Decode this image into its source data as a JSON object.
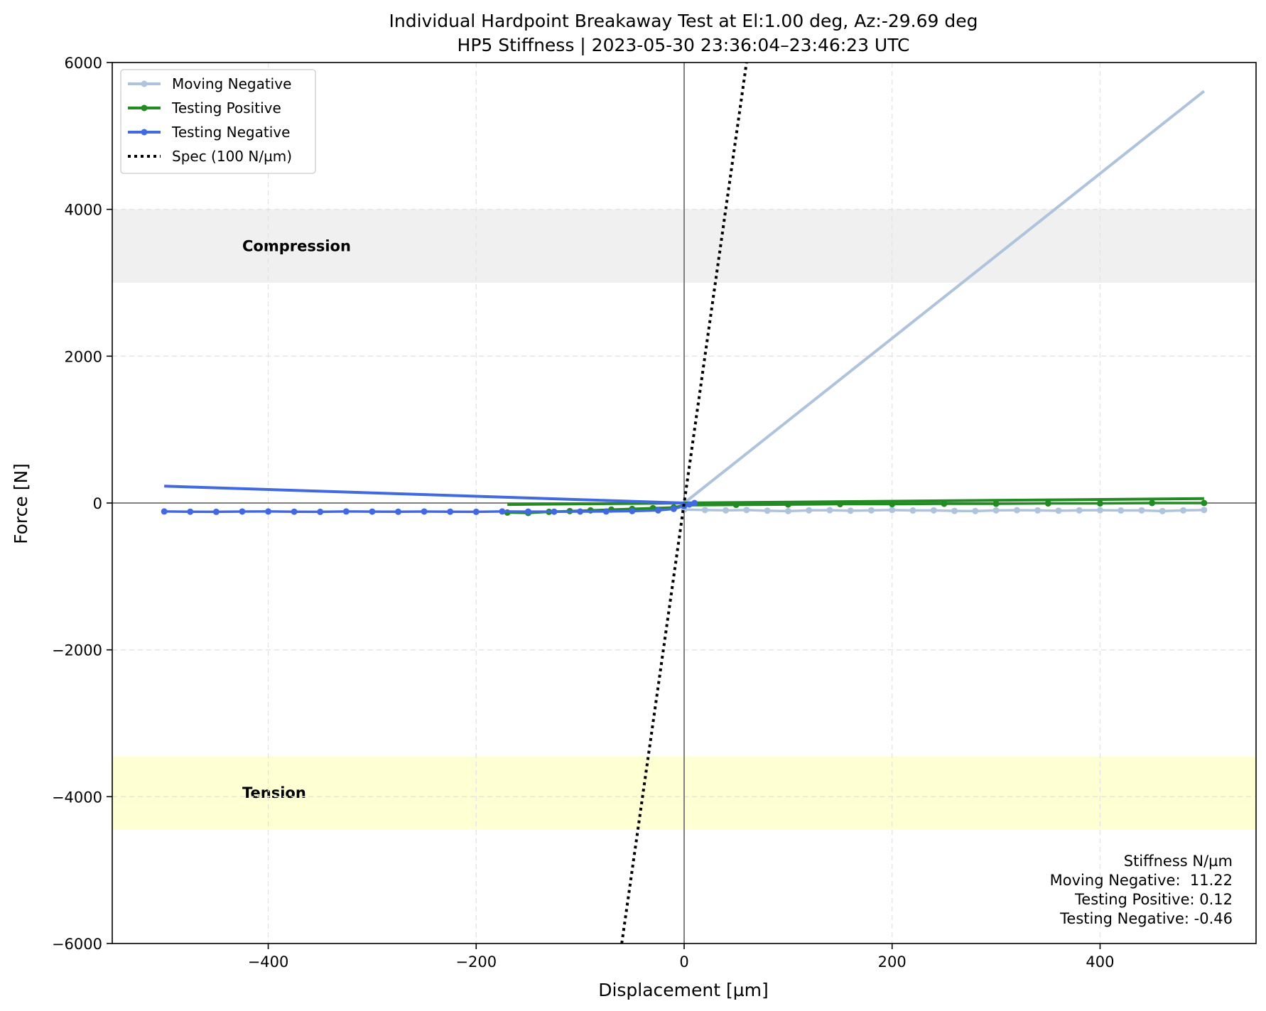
{
  "chart_data": {
    "type": "line",
    "title": "Individual Hardpoint Breakaway Test at El:1.00 deg, Az:-29.69 deg",
    "subtitle": "HP5 Stiffness | 2023-05-30 23:36:04–23:46:23 UTC",
    "xlabel": "Displacement [µm]",
    "ylabel": "Force [N]",
    "xlim": [
      -550,
      550
    ],
    "ylim": [
      -6000,
      6000
    ],
    "xticks": [
      -400,
      -200,
      0,
      200,
      400
    ],
    "yticks": [
      -6000,
      -4000,
      -2000,
      0,
      2000,
      4000,
      6000
    ],
    "xtick_labels": [
      "−400",
      "−200",
      "0",
      "200",
      "400"
    ],
    "ytick_labels": [
      "−6000",
      "−4000",
      "−2000",
      "0",
      "2000",
      "4000",
      "6000"
    ],
    "grid": true,
    "legend_position": "top-left",
    "bands": [
      {
        "label": "Compression",
        "y_from": 3000,
        "y_to": 4000,
        "color": "#f0f0f0"
      },
      {
        "label": "Tension",
        "y_from": -4450,
        "y_to": -3450,
        "color": "#ffffd4"
      }
    ],
    "series": [
      {
        "name": "Moving Negative",
        "color": "#aec3dc",
        "data_x": [
          0,
          20,
          40,
          60,
          80,
          100,
          120,
          140,
          160,
          180,
          200,
          220,
          240,
          260,
          280,
          300,
          320,
          340,
          360,
          380,
          400,
          420,
          440,
          460,
          480,
          500
        ],
        "data_y": [
          -90,
          -95,
          -100,
          -95,
          -105,
          -110,
          -100,
          -98,
          -105,
          -100,
          -95,
          -102,
          -100,
          -108,
          -110,
          -100,
          -98,
          -100,
          -105,
          -100,
          -98,
          -102,
          -100,
          -110,
          -100,
          -95
        ],
        "fit_x": [
          0,
          500
        ],
        "fit_y": [
          0,
          5610
        ]
      },
      {
        "name": "Testing Positive",
        "color": "#228b22",
        "data_x": [
          -170,
          -150,
          -130,
          -110,
          -90,
          -70,
          -50,
          -30,
          -10,
          0,
          50,
          100,
          150,
          200,
          250,
          300,
          350,
          400,
          450,
          500
        ],
        "data_y": [
          -130,
          -135,
          -120,
          -110,
          -100,
          -90,
          -80,
          -70,
          -60,
          -30,
          -25,
          -20,
          -15,
          -15,
          -10,
          -10,
          -5,
          -5,
          0,
          0
        ],
        "fit_x": [
          -170,
          500
        ],
        "fit_y": [
          -20,
          60
        ]
      },
      {
        "name": "Testing Negative",
        "color": "#4169e1",
        "data_x": [
          -500,
          -475,
          -450,
          -425,
          -400,
          -375,
          -350,
          -325,
          -300,
          -275,
          -250,
          -225,
          -200,
          -175,
          -150,
          -125,
          -100,
          -75,
          -50,
          -25,
          -10,
          0,
          5,
          10
        ],
        "data_y": [
          -115,
          -118,
          -120,
          -116,
          -115,
          -118,
          -120,
          -115,
          -117,
          -119,
          -116,
          -118,
          -120,
          -115,
          -117,
          -118,
          -116,
          -115,
          -110,
          -100,
          -80,
          -40,
          -20,
          0
        ],
        "fit_x": [
          -500,
          0
        ],
        "fit_y": [
          230,
          0
        ]
      },
      {
        "name": "Spec (100 N/µm)",
        "color": "#000000",
        "style": "dotted",
        "fit_x": [
          -60,
          60
        ],
        "fit_y": [
          -6000,
          6000
        ]
      }
    ],
    "annotation": {
      "heading": "Stiffness N/µm",
      "lines": [
        "Moving Negative:  11.22",
        "Testing Positive: 0.12",
        "Testing Negative: -0.46"
      ]
    }
  }
}
